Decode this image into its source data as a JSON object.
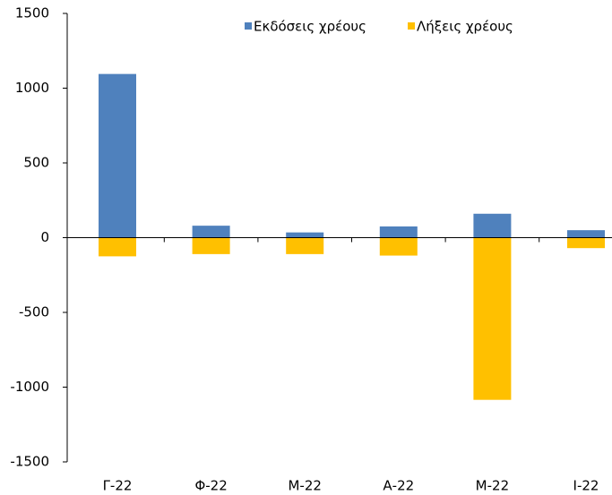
{
  "chart_data": {
    "type": "bar",
    "stacked": true,
    "categories": [
      "Γ-22",
      "Φ-22",
      "Μ-22",
      "Α-22",
      "Μ-22",
      "Ι-22"
    ],
    "series": [
      {
        "name": "Εκδόσεις χρέους",
        "color": "#4f81bd",
        "values": [
          1095,
          80,
          35,
          75,
          160,
          50
        ]
      },
      {
        "name": "Λήξεις χρέους",
        "color": "#ffc000",
        "values": [
          -125,
          -110,
          -110,
          -120,
          -1085,
          -70
        ]
      }
    ],
    "ylim": [
      -1500,
      1500
    ],
    "yticks": [
      -1500,
      -1000,
      -500,
      0,
      500,
      1000,
      1500
    ],
    "grid": false,
    "legend": "top"
  }
}
